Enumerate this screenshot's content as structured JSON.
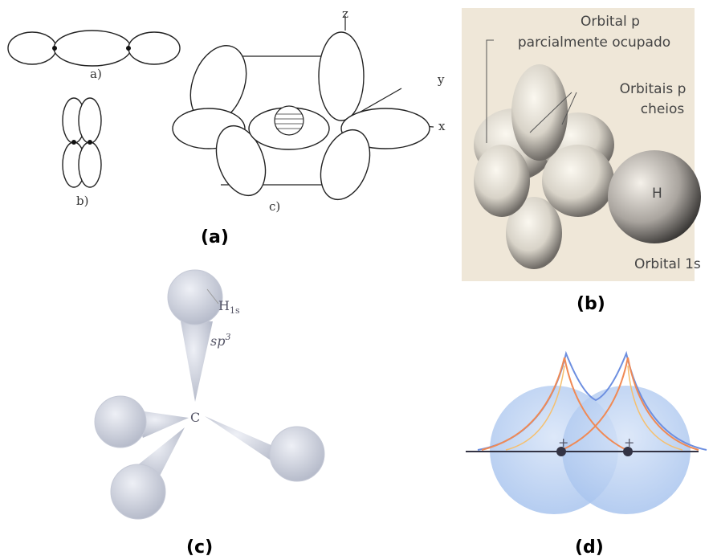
{
  "panels": [
    {
      "label": "(a)",
      "sub_labels": [
        "a)",
        "b)",
        "c)"
      ],
      "axes": [
        "z",
        "y",
        "x"
      ]
    },
    {
      "label": "(b)",
      "texts": [
        "Orbital p",
        "parcialmente ocupado",
        "Orbitais p",
        "cheios",
        "H",
        "Orbital 1s"
      ]
    },
    {
      "label": "(c)",
      "h_label": {
        "base": "H",
        "sub": "1s"
      },
      "sp_label": {
        "base": "sp",
        "sup": "3"
      },
      "center": "C"
    },
    {
      "label": "(d)",
      "signs": [
        "+",
        "+"
      ]
    }
  ]
}
